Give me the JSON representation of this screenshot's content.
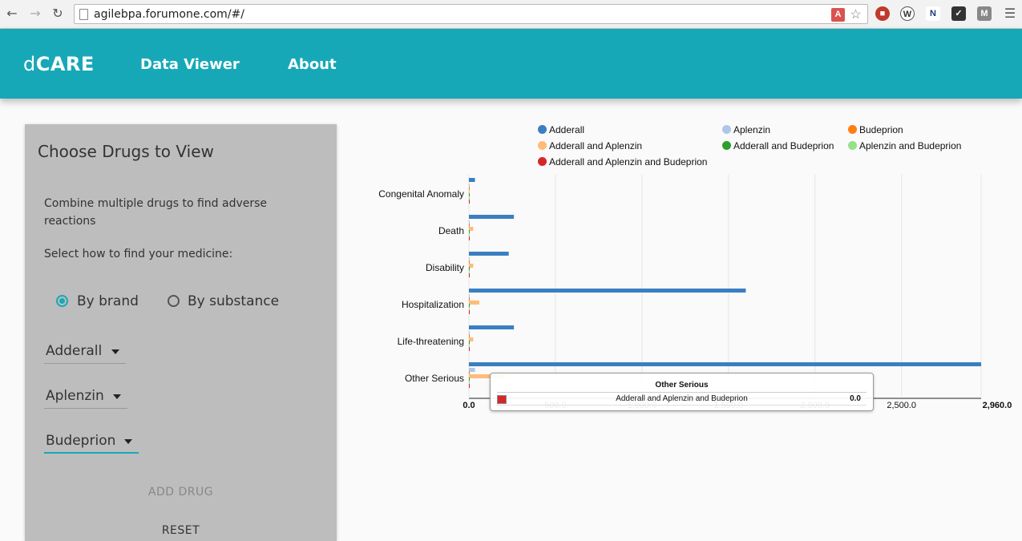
{
  "browser": {
    "url": "agilebpa.forumone.com/#/"
  },
  "header": {
    "logo_prefix": "d",
    "logo_main": "CARE",
    "nav": [
      {
        "label": "Data Viewer"
      },
      {
        "label": "About"
      }
    ]
  },
  "panel": {
    "title": "Choose Drugs to View",
    "intro": "Combine multiple drugs to find adverse reactions",
    "prompt": "Select how to find your medicine:",
    "radio_brand": "By brand",
    "radio_substance": "By substance",
    "selected_mode": "brand",
    "selects": [
      {
        "value": "Adderall"
      },
      {
        "value": "Aplenzin"
      },
      {
        "value": "Budeprion"
      }
    ],
    "add_drug": "ADD DRUG",
    "reset": "RESET"
  },
  "chart_data": {
    "type": "bar",
    "orientation": "horizontal",
    "categories": [
      "Congenital Anomaly",
      "Death",
      "Disability",
      "Hospitalization",
      "Life-threatening",
      "Other Serious"
    ],
    "series": [
      {
        "name": "Adderall",
        "color": "#3a7fc1",
        "values": [
          35,
          260,
          230,
          1600,
          260,
          2960
        ]
      },
      {
        "name": "Aplenzin",
        "color": "#aec7e8",
        "values": [
          0,
          0,
          0,
          0,
          0,
          35
        ]
      },
      {
        "name": "Budeprion",
        "color": "#ff7f0e",
        "values": [
          0,
          0,
          0,
          0,
          0,
          0
        ]
      },
      {
        "name": "Adderall and Aplenzin",
        "color": "#ffbb78",
        "values": [
          0,
          25,
          25,
          60,
          25,
          210
        ]
      },
      {
        "name": "Adderall and Budeprion",
        "color": "#2ca02c",
        "values": [
          0,
          0,
          0,
          0,
          0,
          0
        ]
      },
      {
        "name": "Aplenzin and Budeprion",
        "color": "#98df8a",
        "values": [
          0,
          0,
          0,
          0,
          0,
          0
        ]
      },
      {
        "name": "Adderall and Aplenzin and Budeprion",
        "color": "#d62728",
        "values": [
          0,
          0,
          0,
          0,
          0,
          0
        ]
      }
    ],
    "xlim": [
      0,
      2960
    ],
    "xticks": [
      "0.0",
      "500.0",
      "1,000.0",
      "1,500.0",
      "2,000.0",
      "2,500.0",
      "2,960.0"
    ],
    "grid": true,
    "legend_position": "top",
    "tooltip": {
      "title": "Other Serious",
      "key": "Adderall and Aplenzin and Budeprion",
      "value": "0.0",
      "color": "#d62728"
    }
  }
}
